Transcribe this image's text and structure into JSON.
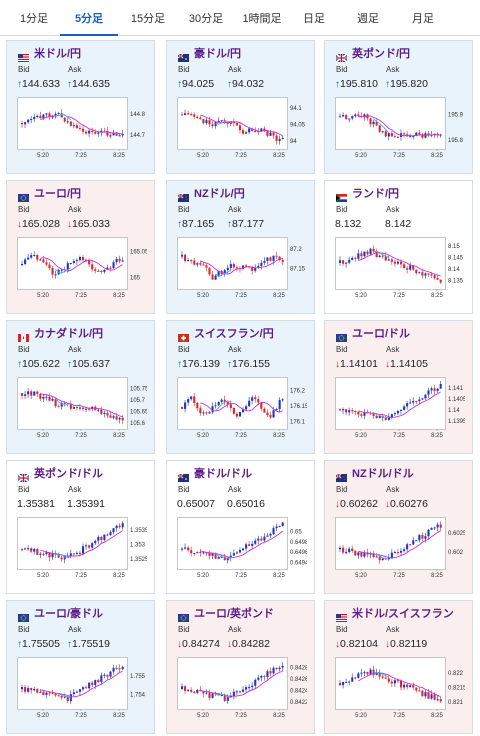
{
  "tabs": [
    {
      "label": "1分足",
      "active": false
    },
    {
      "label": "5分足",
      "active": true
    },
    {
      "label": "15分足",
      "active": false
    },
    {
      "label": "30分足",
      "active": false
    },
    {
      "label": "1時間足",
      "active": false
    },
    {
      "label": "日足",
      "active": false
    },
    {
      "label": "週足",
      "active": false
    },
    {
      "label": "月足",
      "active": false
    }
  ],
  "labels": {
    "bid": "Bid",
    "ask": "Ask"
  },
  "colors": {
    "up_candle": "#1d36c8",
    "down_candle": "#e0242b",
    "ma_line": "#cc33cc",
    "ma2_line": "#3bb6e8",
    "up_arrow": "#1a56c4",
    "down_arrow": "#d32323",
    "pair_name": "#5b1d86"
  },
  "cards": [
    {
      "pair": "米ドル/円",
      "flag": "flag-us-icon",
      "trend": "up",
      "bid": "144.633",
      "ask": "144.635",
      "chart_data": {
        "type": "candlestick",
        "x_ticks": [
          "5:20",
          "7:25",
          "8:25"
        ],
        "y_ticks": [
          "144.8",
          "144.7"
        ],
        "ylim": [
          144.64,
          144.86
        ],
        "pattern": "rise-drop-sideways"
      }
    },
    {
      "pair": "豪ドル/円",
      "flag": "flag-au-icon",
      "trend": "up",
      "bid": "94.025",
      "ask": "94.032",
      "chart_data": {
        "type": "candlestick",
        "x_ticks": [
          "5:20",
          "7:25",
          "8:25"
        ],
        "y_ticks": [
          "94.1",
          "94.05",
          "94"
        ],
        "ylim": [
          93.98,
          94.12
        ],
        "pattern": "volatile-down"
      }
    },
    {
      "pair": "英ポンド/円",
      "flag": "flag-gb-icon",
      "trend": "up",
      "bid": "195.810",
      "ask": "195.820",
      "chart_data": {
        "type": "candlestick",
        "x_ticks": [
          "5:20",
          "7:25",
          "8:25"
        ],
        "y_ticks": [
          "195.9",
          "195.8"
        ],
        "ylim": [
          195.77,
          195.95
        ],
        "pattern": "drop-then-low"
      }
    },
    {
      "pair": "ユーロ/円",
      "flag": "flag-eu-icon",
      "trend": "down",
      "bid": "165.028",
      "ask": "165.033",
      "chart_data": {
        "type": "candlestick",
        "x_ticks": [
          "5:20",
          "7:25",
          "8:25"
        ],
        "y_ticks": [
          "165.05",
          "165"
        ],
        "ylim": [
          164.98,
          165.07
        ],
        "pattern": "sideways-volatile"
      }
    },
    {
      "pair": "NZドル/円",
      "flag": "flag-nz-icon",
      "trend": "up",
      "bid": "87.165",
      "ask": "87.177",
      "chart_data": {
        "type": "candlestick",
        "x_ticks": [
          "5:20",
          "7:25",
          "8:25"
        ],
        "y_ticks": [
          "87.2",
          "87.15"
        ],
        "ylim": [
          87.1,
          87.22
        ],
        "pattern": "dip-recover"
      }
    },
    {
      "pair": "ランド/円",
      "flag": "flag-za-icon",
      "trend": "flat",
      "bid": "8.132",
      "ask": "8.142",
      "chart_data": {
        "type": "candlestick",
        "x_ticks": [
          "5:20",
          "7:25",
          "8:25"
        ],
        "y_ticks": [
          "8.15",
          "8.145",
          "8.14",
          "8.135"
        ],
        "ylim": [
          8.132,
          8.152
        ],
        "pattern": "spike-then-down"
      }
    },
    {
      "pair": "カナダドル/円",
      "flag": "flag-ca-icon",
      "trend": "up",
      "bid": "105.622",
      "ask": "105.637",
      "chart_data": {
        "type": "candlestick",
        "x_ticks": [
          "5:20",
          "7:25",
          "8:25"
        ],
        "y_ticks": [
          "105.75",
          "105.7",
          "105.65",
          "105.6"
        ],
        "ylim": [
          105.58,
          105.78
        ],
        "pattern": "downtrend"
      }
    },
    {
      "pair": "スイスフラン/円",
      "flag": "flag-ch-icon",
      "trend": "up",
      "bid": "176.139",
      "ask": "176.155",
      "chart_data": {
        "type": "candlestick",
        "x_ticks": [
          "5:20",
          "7:25",
          "8:25"
        ],
        "y_ticks": [
          "176.2",
          "176.15",
          "176.1"
        ],
        "ylim": [
          176.08,
          176.23
        ],
        "pattern": "volatile-sideways"
      }
    },
    {
      "pair": "ユーロ/ドル",
      "flag": "flag-eu-icon",
      "trend": "down",
      "bid": "1.14101",
      "ask": "1.14105",
      "chart_data": {
        "type": "candlestick",
        "x_ticks": [
          "5:20",
          "7:25",
          "8:25"
        ],
        "y_ticks": [
          "1.141",
          "1.1405",
          "1.14",
          "1.1395"
        ],
        "ylim": [
          1.1392,
          1.1413
        ],
        "pattern": "dip-then-rally"
      }
    },
    {
      "pair": "英ポンド/ドル",
      "flag": "flag-gb-icon",
      "trend": "flat",
      "bid": "1.35381",
      "ask": "1.35391",
      "chart_data": {
        "type": "candlestick",
        "x_ticks": [
          "5:20",
          "7:25",
          "8:25"
        ],
        "y_ticks": [
          "1.3535",
          "1.353",
          "1.3525"
        ],
        "ylim": [
          1.3522,
          1.3538
        ],
        "pattern": "dip-then-rally"
      }
    },
    {
      "pair": "豪ドル/ドル",
      "flag": "flag-au-icon",
      "trend": "flat",
      "bid": "0.65007",
      "ask": "0.65016",
      "chart_data": {
        "type": "candlestick",
        "x_ticks": [
          "5:20",
          "7:25",
          "8:25"
        ],
        "y_ticks": [
          "0.65",
          "0.6498",
          "0.6496",
          "0.6494"
        ],
        "ylim": [
          0.6493,
          0.6502
        ],
        "pattern": "dip-then-rally"
      }
    },
    {
      "pair": "NZドル/ドル",
      "flag": "flag-nz-icon",
      "trend": "down",
      "bid": "0.60262",
      "ask": "0.60276",
      "chart_data": {
        "type": "candlestick",
        "x_ticks": [
          "5:20",
          "7:25",
          "8:25"
        ],
        "y_ticks": [
          "0.6025",
          "0.602"
        ],
        "ylim": [
          0.6016,
          0.6028
        ],
        "pattern": "dip-then-rally"
      }
    },
    {
      "pair": "ユーロ/豪ドル",
      "flag": "flag-eu-icon",
      "trend": "up",
      "bid": "1.75505",
      "ask": "1.75519",
      "chart_data": {
        "type": "candlestick",
        "x_ticks": [
          "5:20",
          "7:25",
          "8:25"
        ],
        "y_ticks": [
          "1.755",
          "1.754"
        ],
        "ylim": [
          1.7533,
          1.7558
        ],
        "pattern": "dip-then-rally"
      }
    },
    {
      "pair": "ユーロ/英ポンド",
      "flag": "flag-eu-icon",
      "trend": "down",
      "bid": "0.84274",
      "ask": "0.84282",
      "chart_data": {
        "type": "candlestick",
        "x_ticks": [
          "5:20",
          "7:25",
          "8:25"
        ],
        "y_ticks": [
          "0.8428",
          "0.8426",
          "0.8424",
          "0.8422"
        ],
        "ylim": [
          0.8421,
          0.8429
        ],
        "pattern": "dip-then-rally"
      }
    },
    {
      "pair": "米ドル/スイスフラン",
      "flag": "flag-us-icon",
      "trend": "down",
      "bid": "0.82104",
      "ask": "0.82119",
      "chart_data": {
        "type": "candlestick",
        "x_ticks": [
          "5:20",
          "7:25",
          "8:25"
        ],
        "y_ticks": [
          "0.822",
          "0.8215",
          "0.821"
        ],
        "ylim": [
          0.8208,
          0.8224
        ],
        "pattern": "spike-then-down"
      }
    }
  ]
}
